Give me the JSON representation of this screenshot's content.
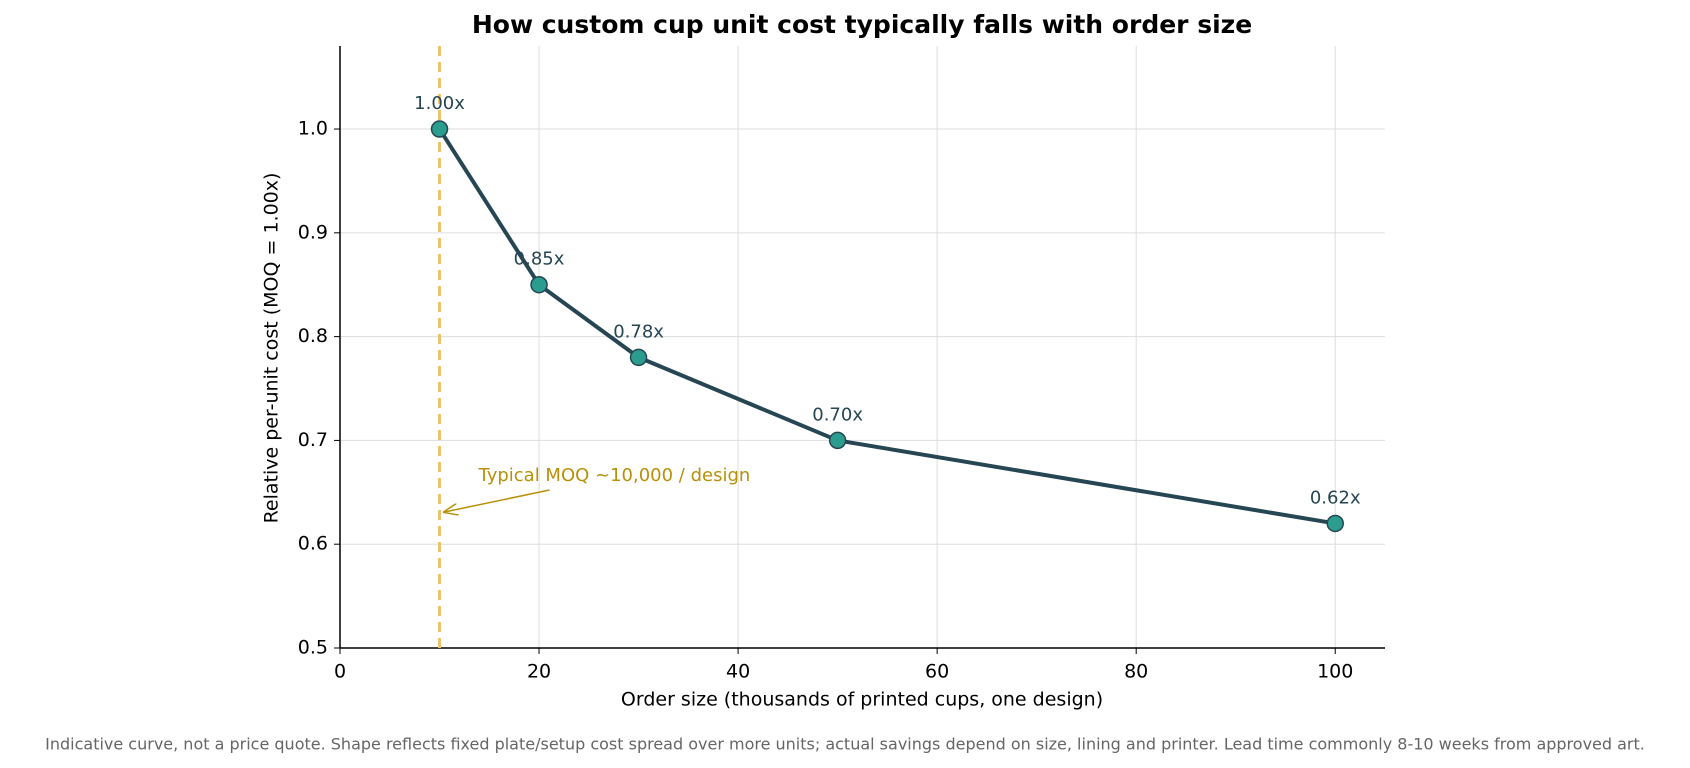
{
  "chart_data": {
    "type": "line",
    "title": "How custom cup unit cost typically falls with order size",
    "x_label": "Order size (thousands of printed cups, one design)",
    "y_label": "Relative per-unit cost (MOQ = 1.00x)",
    "x": [
      10,
      20,
      30,
      50,
      100
    ],
    "series": [
      {
        "color": "#264653",
        "marker_color": "#2a9d8f",
        "values": [
          1.0,
          0.85,
          0.78,
          0.7,
          0.62
        ],
        "value_labels": [
          "1.00x",
          "0.85x",
          "0.78x",
          "0.70x",
          "0.62x"
        ]
      }
    ],
    "xlim": [
      0,
      105
    ],
    "ylim": [
      0.5,
      1.08
    ],
    "xticks": [
      0,
      20,
      40,
      60,
      80,
      100
    ],
    "yticks": [
      {
        "value": 0.5,
        "label": "0.5"
      },
      {
        "value": 0.6,
        "label": "0.6"
      },
      {
        "value": 0.7,
        "label": "0.7"
      },
      {
        "value": 0.8,
        "label": "0.8"
      },
      {
        "value": 0.9,
        "label": "0.9"
      },
      {
        "value": 1.0,
        "label": "1.0"
      }
    ],
    "grid": true,
    "reference_line": {
      "x": 10,
      "color": "#e9c46a",
      "annotation": "Typical MOQ ~10,000 / design",
      "annotation_color": "#b8900a"
    },
    "footnote": "Indicative curve, not a price quote. Shape reflects fixed plate/setup cost spread over more units; actual savings depend on size, lining and printer. Lead time commonly 8-10 weeks from approved art."
  }
}
